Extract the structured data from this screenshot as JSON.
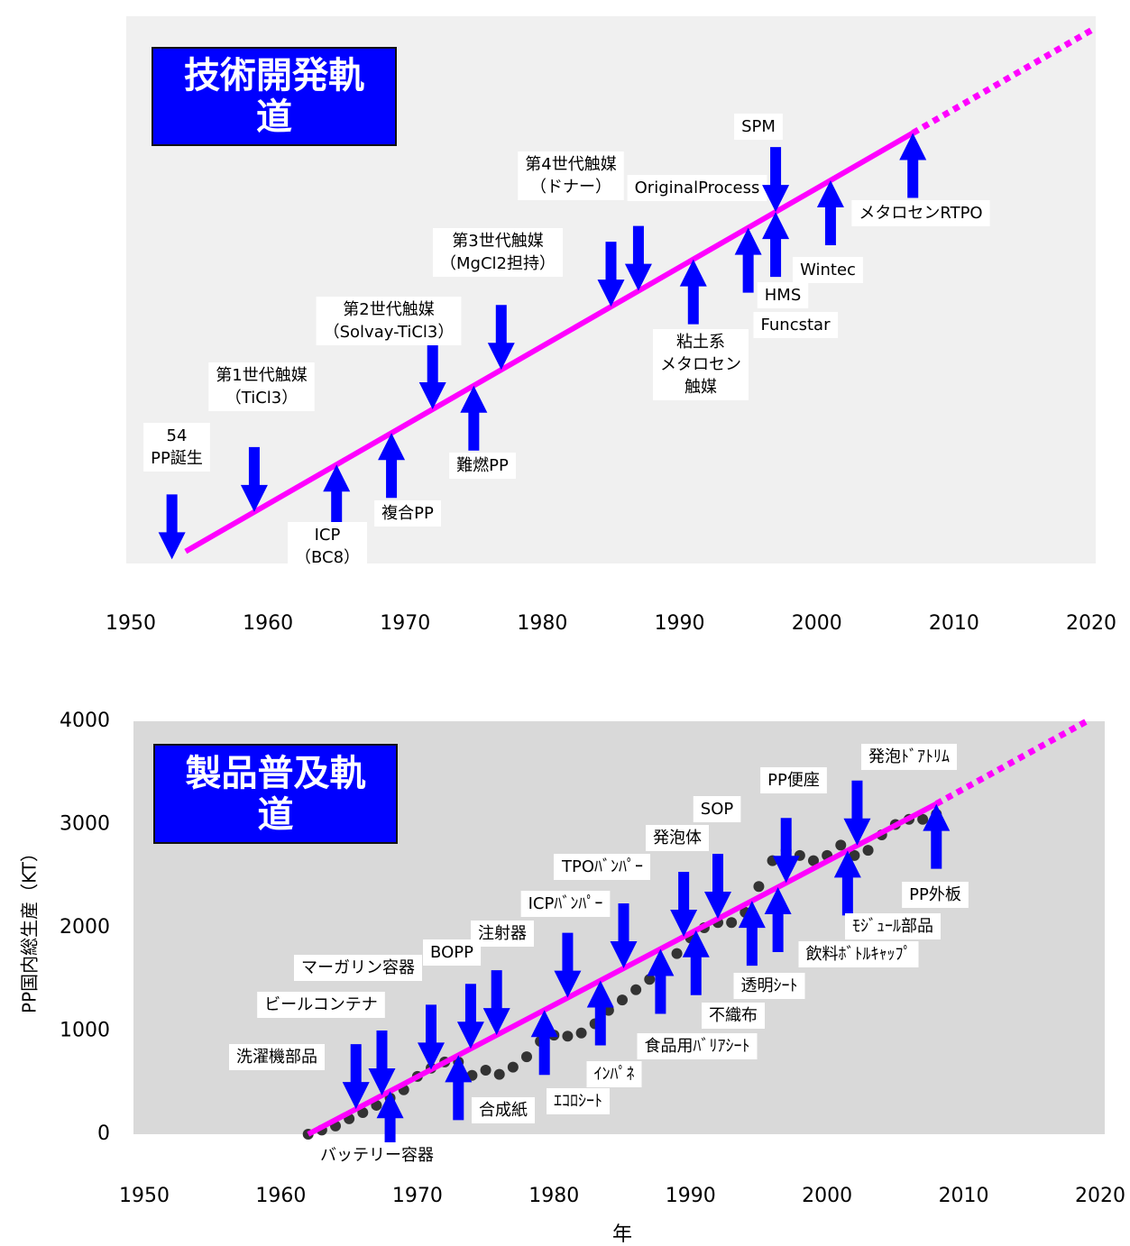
{
  "chart_data": [
    {
      "type": "timeline",
      "title": "技術開発軌道",
      "xlim": [
        1950,
        2020
      ],
      "xticks": [
        1950,
        1960,
        1970,
        1980,
        1990,
        2000,
        2010,
        2020
      ],
      "trend_x": [
        1954,
        2007
      ],
      "projection_x": [
        2007,
        2020
      ],
      "color": "#ff00ff",
      "arrow_color": "#0000ff",
      "annotations": [
        {
          "label": [
            "54",
            "PP誕生"
          ],
          "x": 1953,
          "direction": "down"
        },
        {
          "label": [
            "第1世代触媒",
            "（TiCl3）"
          ],
          "x": 1959,
          "direction": "down"
        },
        {
          "label": [
            "ICP",
            "（BC8）"
          ],
          "x": 1965,
          "direction": "up"
        },
        {
          "label": [
            "複合PP"
          ],
          "x": 1969,
          "direction": "up"
        },
        {
          "label": [
            "第2世代触媒",
            "（Solvay-TiCl3）"
          ],
          "x": 1972,
          "direction": "down"
        },
        {
          "label": [
            "難燃PP"
          ],
          "x": 1975,
          "direction": "up"
        },
        {
          "label": [
            "第3世代触媒",
            "（MgCl2担持）"
          ],
          "x": 1977,
          "direction": "down"
        },
        {
          "label": [
            "第4世代触媒",
            "（ドナー）"
          ],
          "x": 1985,
          "direction": "down"
        },
        {
          "label": [
            "OriginalProcess"
          ],
          "x": 1987,
          "direction": "down"
        },
        {
          "label": [
            "粘土系",
            "メタロセン",
            "触媒"
          ],
          "x": 1991,
          "direction": "up"
        },
        {
          "label": [
            "Funcstar"
          ],
          "x": 1995,
          "direction": "up"
        },
        {
          "label": [
            "SPM"
          ],
          "x": 1997,
          "direction": "down"
        },
        {
          "label": [
            "HMS"
          ],
          "x": 1997,
          "direction": "up"
        },
        {
          "label": [
            "Wintec"
          ],
          "x": 2001,
          "direction": "up"
        },
        {
          "label": [
            "メタロセンRTPO"
          ],
          "x": 2007,
          "direction": "up"
        }
      ]
    },
    {
      "type": "scatter",
      "title": "製品普及軌道",
      "xlabel": "年",
      "ylabel": "PP国内総生産（KT）",
      "xlim": [
        1950,
        2020
      ],
      "xticks": [
        1950,
        1960,
        1970,
        1980,
        1990,
        2000,
        2010,
        2020
      ],
      "ylim": [
        0,
        4000
      ],
      "yticks": [
        0,
        1000,
        2000,
        3000,
        4000
      ],
      "color": "#333333",
      "trend_color": "#ff00ff",
      "arrow_color": "#0000ff",
      "x": [
        1962,
        1963,
        1964,
        1965,
        1966,
        1967,
        1968,
        1969,
        1970,
        1971,
        1972,
        1973,
        1974,
        1975,
        1976,
        1977,
        1978,
        1979,
        1980,
        1981,
        1982,
        1983,
        1984,
        1985,
        1986,
        1987,
        1988,
        1989,
        1990,
        1991,
        1992,
        1993,
        1994,
        1995,
        1996,
        1997,
        1998,
        1999,
        2000,
        2001,
        2002,
        2003,
        2004,
        2005,
        2006,
        2007,
        2008
      ],
      "values": [
        0,
        40,
        80,
        150,
        210,
        280,
        350,
        430,
        560,
        640,
        700,
        700,
        570,
        620,
        580,
        650,
        750,
        900,
        960,
        950,
        980,
        1070,
        1200,
        1300,
        1400,
        1500,
        1600,
        1750,
        1900,
        2000,
        2050,
        2050,
        2150,
        2400,
        2650,
        2750,
        2700,
        2650,
        2700,
        2800,
        2700,
        2750,
        2900,
        3000,
        3050,
        3050,
        3100
      ],
      "trend_x": [
        1962,
        2008
      ],
      "trend_values": [
        0,
        3200
      ],
      "projection_x": [
        2008,
        2019
      ],
      "projection_values": [
        3200,
        4000
      ],
      "annotations": [
        {
          "label": [
            "洗濯機部品"
          ],
          "x": 1965.5,
          "direction": "down"
        },
        {
          "label": [
            "ビールコンテナ"
          ],
          "x": 1967.4,
          "direction": "down"
        },
        {
          "label": [
            "バッテリー容器"
          ],
          "x": 1968,
          "direction": "up"
        },
        {
          "label": [
            "マーガリン容器"
          ],
          "x": 1971,
          "direction": "down"
        },
        {
          "label": [
            "BOPP"
          ],
          "x": 1973.9,
          "direction": "down"
        },
        {
          "label": [
            "合成紙"
          ],
          "x": 1973,
          "direction": "up"
        },
        {
          "label": [
            "注射器"
          ],
          "x": 1975.8,
          "direction": "down"
        },
        {
          "label": [
            "ICPﾊﾞﾝﾊﾟｰ"
          ],
          "x": 1981,
          "direction": "down"
        },
        {
          "label": [
            "ｴｺﾛｼｰﾄ"
          ],
          "x": 1979.3,
          "direction": "up"
        },
        {
          "label": [
            "ｲﾝﾊﾟﾈ"
          ],
          "x": 1983.4,
          "direction": "up"
        },
        {
          "label": [
            "TPOﾊﾞﾝﾊﾟｰ"
          ],
          "x": 1985.1,
          "direction": "down"
        },
        {
          "label": [
            "食品用ﾊﾞﾘｱｼｰﾄ"
          ],
          "x": 1987.8,
          "direction": "up"
        },
        {
          "label": [
            "発泡体"
          ],
          "x": 1989.5,
          "direction": "down"
        },
        {
          "label": [
            "不織布"
          ],
          "x": 1990.4,
          "direction": "up"
        },
        {
          "label": [
            "SOP"
          ],
          "x": 1992,
          "direction": "down"
        },
        {
          "label": [
            "透明ｼｰﾄ"
          ],
          "x": 1994.5,
          "direction": "up"
        },
        {
          "label": [
            "PP便座"
          ],
          "x": 1997,
          "direction": "down"
        },
        {
          "label": [
            "飲料ﾎﾞﾄﾙｷｬｯﾌﾟ"
          ],
          "x": 1996.4,
          "direction": "up"
        },
        {
          "label": [
            "ﾓｼﾞｭｰﾙ部品"
          ],
          "x": 2001.5,
          "direction": "up"
        },
        {
          "label": [
            "発泡ﾄﾞｱﾄﾘﾑ"
          ],
          "x": 2002.2,
          "direction": "down"
        },
        {
          "label": [
            "PP外板"
          ],
          "x": 2008,
          "direction": "up"
        }
      ]
    }
  ]
}
